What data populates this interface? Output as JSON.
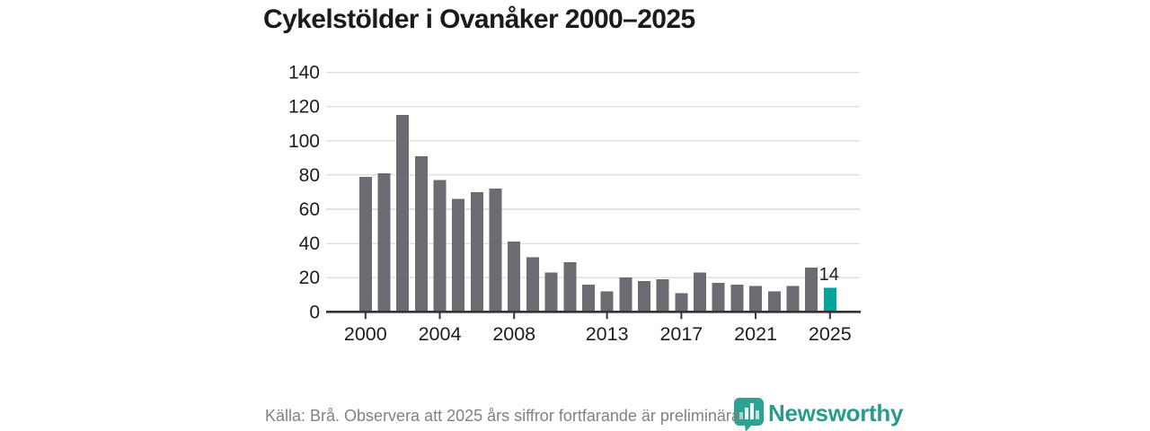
{
  "title": "Cykelstölder i Ovanåker 2000–2025",
  "chart_data": {
    "type": "bar",
    "categories": [
      2000,
      2001,
      2002,
      2003,
      2004,
      2005,
      2006,
      2007,
      2008,
      2009,
      2010,
      2011,
      2012,
      2013,
      2014,
      2015,
      2016,
      2017,
      2018,
      2019,
      2020,
      2021,
      2022,
      2023,
      2024,
      2025
    ],
    "values": [
      79,
      81,
      115,
      91,
      77,
      66,
      70,
      72,
      41,
      32,
      23,
      29,
      16,
      12,
      20,
      18,
      19,
      11,
      23,
      17,
      16,
      15,
      12,
      15,
      26,
      14
    ],
    "title": "Cykelstölder i Ovanåker 2000–2025",
    "xlabel": "",
    "ylabel": "",
    "ylim": [
      0,
      140
    ],
    "yticks": [
      0,
      20,
      40,
      60,
      80,
      100,
      120,
      140
    ],
    "xtick_labels": [
      "2000",
      "2004",
      "2008",
      "2013",
      "2017",
      "2021",
      "2025"
    ],
    "grid": true,
    "legend": "none",
    "highlight_index": 25,
    "highlight_value_label": "14",
    "colors": {
      "bar": "#6b6b72",
      "highlight": "#00a59b",
      "gridline": "#e1e1e1",
      "axis": "#333333",
      "tick_text": "#1d1d1d"
    }
  },
  "footer": {
    "source_note": "Källa: Brå. Observera att 2025 års siffror fortfarande är preliminära."
  },
  "branding": {
    "wordmark": "Newsworthy",
    "icon": "newsworthy-logo-icon",
    "color": "#2a9a8d"
  }
}
